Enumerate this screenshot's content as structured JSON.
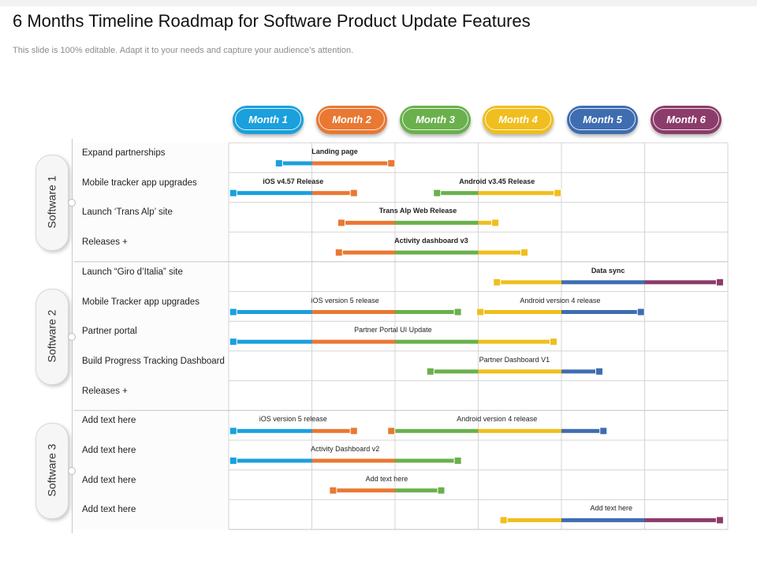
{
  "title": "6 Months Timeline Roadmap for Software Product Update Features",
  "subtitle": "This slide is 100% editable. Adapt it to your needs and capture your audience’s attention.",
  "months": [
    {
      "label": "Month 1",
      "color": "#1aa0dc"
    },
    {
      "label": "Month 2",
      "color": "#e97832"
    },
    {
      "label": "Month 3",
      "color": "#6ab04c"
    },
    {
      "label": "Month 4",
      "color": "#f0be1e"
    },
    {
      "label": "Month 5",
      "color": "#3e6db1"
    },
    {
      "label": "Month 6",
      "color": "#8c3c6a"
    }
  ],
  "groups": [
    {
      "label": "Software 1",
      "rows": [
        {
          "label": "Expand partnerships",
          "bars": [
            {
              "label": "Landing page",
              "bold": true,
              "start": 0.6,
              "end": 1.95
            }
          ]
        },
        {
          "label": "Mobile tracker app upgrades",
          "bars": [
            {
              "label": "iOS v4.57 Release",
              "bold": true,
              "start": 0.05,
              "end": 1.5
            },
            {
              "label": "Android v3.45 Release",
              "bold": true,
              "start": 2.5,
              "end": 3.95
            }
          ]
        },
        {
          "label": "Launch ‘Trans Alp’ site",
          "bars": [
            {
              "label": "Trans Alp Web Release",
              "bold": true,
              "start": 1.35,
              "end": 3.2
            }
          ]
        },
        {
          "label": "Releases +",
          "bars": [
            {
              "label": "Activity  dashboard v3",
              "bold": true,
              "start": 1.32,
              "end": 3.55
            }
          ]
        }
      ]
    },
    {
      "label": "Software 2",
      "rows": [
        {
          "label": "Launch “Giro d’Italia” site",
          "bars": [
            {
              "label": "Data sync",
              "bold": true,
              "start": 3.22,
              "end": 5.9
            }
          ]
        },
        {
          "label": "Mobile Tracker app upgrades",
          "bars": [
            {
              "label": "iOS version 5 release",
              "bold": false,
              "start": 0.05,
              "end": 2.75
            },
            {
              "label": "Android version 4 release",
              "bold": false,
              "start": 3.02,
              "end": 4.95
            }
          ]
        },
        {
          "label": "Partner portal",
          "bars": [
            {
              "label": "Partner Portal UI Update",
              "bold": false,
              "start": 0.05,
              "end": 3.9
            }
          ]
        },
        {
          "label": "Build Progress Tracking Dashboard",
          "bars": [
            {
              "label": "Partner Dashboard V1",
              "bold": false,
              "start": 2.42,
              "end": 4.45
            }
          ]
        },
        {
          "label": "Releases +",
          "bars": []
        }
      ]
    },
    {
      "label": "Software 3",
      "rows": [
        {
          "label": "Add text here",
          "bars": [
            {
              "label": "iOS version 5 release",
              "bold": false,
              "start": 0.05,
              "end": 1.5
            },
            {
              "label": "Android version 4 release",
              "bold": false,
              "start": 1.95,
              "end": 4.5
            }
          ]
        },
        {
          "label": "Add text here",
          "bars": [
            {
              "label": "Activity Dashboard v2",
              "bold": false,
              "start": 0.05,
              "end": 2.75
            }
          ]
        },
        {
          "label": "Add text here",
          "bars": [
            {
              "label": "Add text here",
              "bold": false,
              "start": 1.25,
              "end": 2.55
            }
          ]
        },
        {
          "label": "Add text here",
          "bars": [
            {
              "label": "Add text here",
              "bold": false,
              "start": 3.3,
              "end": 5.9
            }
          ]
        }
      ]
    }
  ]
}
